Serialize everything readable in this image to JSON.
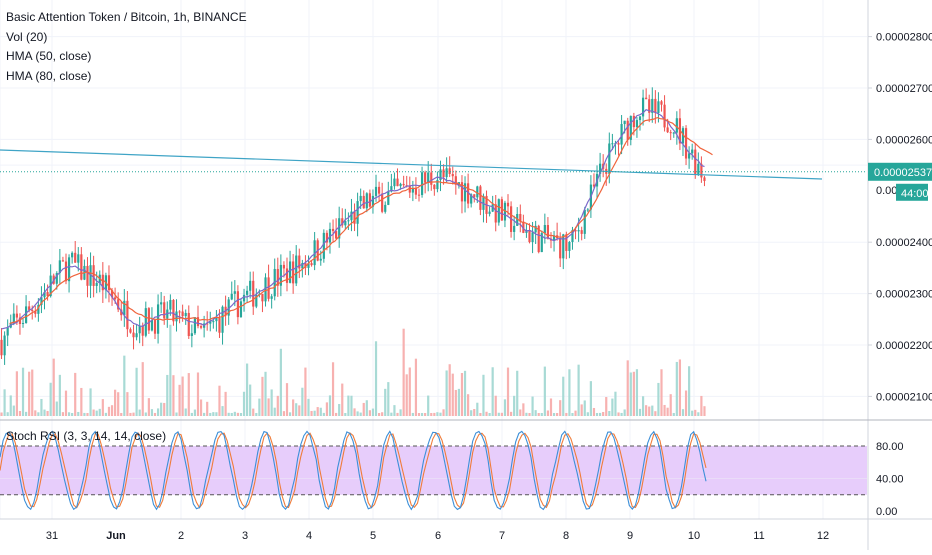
{
  "legend": {
    "symbol": "Basic Attention Token / Bitcoin, 1h, BINANCE",
    "vol": "Vol (20)",
    "hma50": "HMA (50, close)",
    "hma80": "HMA (80, close)"
  },
  "stoch_label": "Stoch RSI (3, 3, 14, 14, close)",
  "colors": {
    "up": "#26a69a",
    "down": "#ef5350",
    "vol_up": "#a8dad5",
    "vol_down": "#f7b1b0",
    "hma50": "#7b68c9",
    "hma80": "#f0643c",
    "trendline": "#3fa4c6",
    "stoch_k": "#3c8fd8",
    "stoch_d": "#f07c3a",
    "stoch_band": "#e7cdfb",
    "price_tag": "#26a69a"
  },
  "price_axis": {
    "ticks": [
      "0.00002800",
      "0.00002700",
      "0.00002600",
      "0.00002400",
      "0.00002300",
      "0.00002200",
      "0.00002100"
    ],
    "current_price_label": "0.00002537",
    "partial_label": "0.000",
    "countdown_label": "44:00"
  },
  "stoch_axis": {
    "ticks": [
      "80.00",
      "40.00",
      "0.00"
    ]
  },
  "time_axis": {
    "ticks": [
      "31",
      "Jun",
      "2",
      "3",
      "4",
      "5",
      "6",
      "7",
      "8",
      "9",
      "10",
      "11",
      "12"
    ]
  },
  "chart_data": {
    "type": "candlestick",
    "symbol": "Basic Attention Token / Bitcoin",
    "interval": "1h",
    "exchange": "BINANCE",
    "x_range": [
      "May 30",
      "Jun 12"
    ],
    "y_range": [
      2.04e-05,
      2.89e-05
    ],
    "approx_close_path": [
      {
        "x": "May 30",
        "close": 2.21e-05
      },
      {
        "x": "May 31",
        "close": 2.28e-05
      },
      {
        "x": "May 31",
        "close": 2.36e-05
      },
      {
        "x": "Jun 1",
        "close": 2.32e-05
      },
      {
        "x": "Jun 1",
        "close": 2.24e-05
      },
      {
        "x": "Jun 2",
        "close": 2.26e-05
      },
      {
        "x": "Jun 2",
        "close": 2.22e-05
      },
      {
        "x": "Jun 3",
        "close": 2.28e-05
      },
      {
        "x": "Jun 3",
        "close": 2.32e-05
      },
      {
        "x": "Jun 4",
        "close": 2.36e-05
      },
      {
        "x": "Jun 4",
        "close": 2.42e-05
      },
      {
        "x": "Jun 5",
        "close": 2.48e-05
      },
      {
        "x": "Jun 5",
        "close": 2.5e-05
      },
      {
        "x": "Jun 6",
        "close": 2.53e-05
      },
      {
        "x": "Jun 6",
        "close": 2.5e-05
      },
      {
        "x": "Jun 7",
        "close": 2.45e-05
      },
      {
        "x": "Jun 7",
        "close": 2.41e-05
      },
      {
        "x": "Jun 8",
        "close": 2.39e-05
      },
      {
        "x": "Jun 8",
        "close": 2.55e-05
      },
      {
        "x": "Jun 9",
        "close": 2.66e-05
      },
      {
        "x": "Jun 9",
        "close": 2.64e-05
      },
      {
        "x": "Jun 10",
        "close": 2.53e-05
      }
    ],
    "current_price": 2.537e-05,
    "volume": {
      "name": "Vol (20)"
    },
    "studies": [
      "HMA (50, close)",
      "HMA (80, close)"
    ],
    "stoch_rsi": {
      "name": "Stoch RSI (3, 3, 14, 14, close)",
      "bands": [
        80,
        20
      ],
      "ylim": [
        0,
        100
      ]
    }
  }
}
